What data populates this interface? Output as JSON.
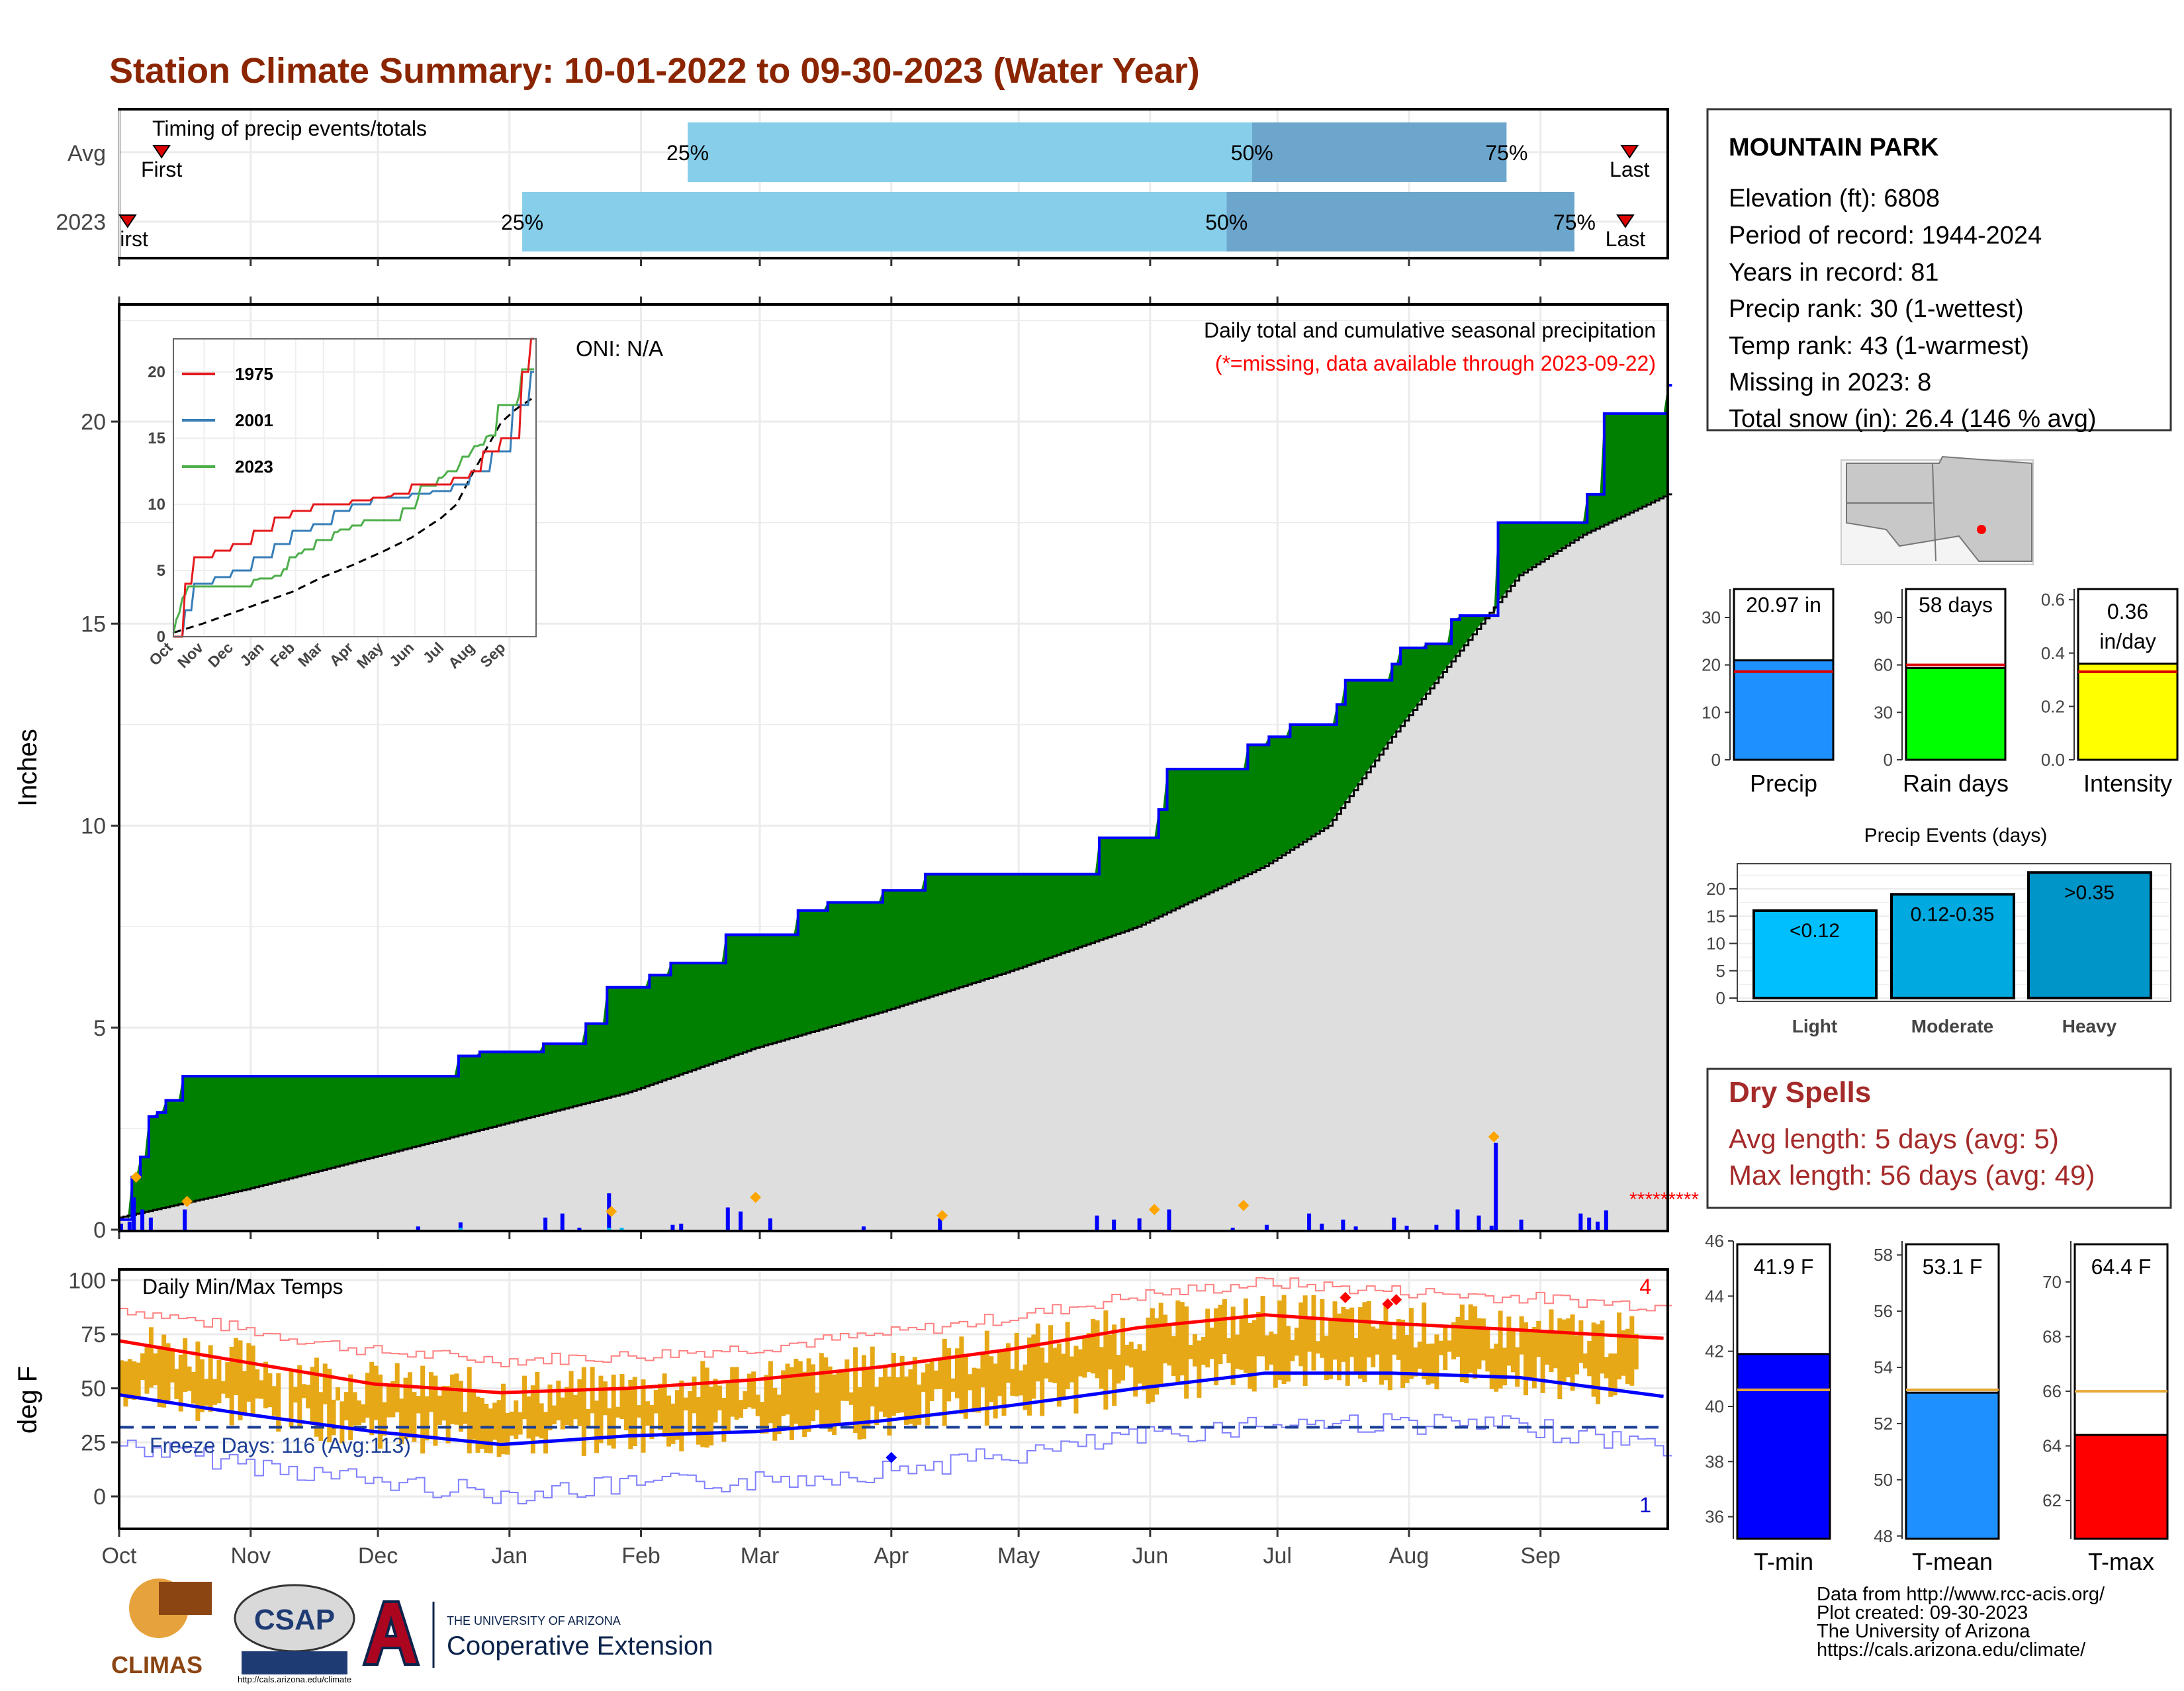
{
  "title": "Station Climate Summary: 10-01-2022 to 09-30-2023 (Water Year)",
  "months": [
    "Oct",
    "Nov",
    "Dec",
    "Jan",
    "Feb",
    "Mar",
    "Apr",
    "May",
    "Jun",
    "Jul",
    "Aug",
    "Sep"
  ],
  "colors": {
    "title": "#8b2500",
    "green": "#008000",
    "blue_line": "#0000ff",
    "grey_fill": "#dedede",
    "light_blue": "#87ceeb",
    "mid_blue": "#6ca6cd",
    "orange": "#e6a817",
    "red": "#ff0000"
  },
  "timing": {
    "title": "Timing of precip events/totals",
    "rows": [
      {
        "label": "Avg",
        "first_label": "First",
        "first_day": 10,
        "last_label": "Last",
        "last_day": 356,
        "p25_day": 134,
        "p50_day": 267,
        "p75_day": 327,
        "p25": "25%",
        "p50": "50%",
        "p75": "75%"
      },
      {
        "label": "2023",
        "first_label": "First",
        "first_day": 2,
        "last_label": "Last",
        "last_day": 355,
        "p25_day": 95,
        "p50_day": 261,
        "p75_day": 343,
        "p25": "25%",
        "p50": "50%",
        "p75": "75%"
      }
    ]
  },
  "precip": {
    "ylabel": "Inches",
    "yticks": [
      0,
      5,
      10,
      15,
      20
    ],
    "ylim": [
      0,
      22.9
    ],
    "oni": "ONI: N/A",
    "note1": "Daily total and cumulative seasonal precipitation",
    "note2": "(*=missing, data available through 2023-09-22)",
    "inset": {
      "yticks": [
        0,
        5,
        10,
        15,
        20
      ],
      "months": [
        "Oct",
        "Nov",
        "Dec",
        "Jan",
        "Feb",
        "Mar",
        "Apr",
        "May",
        "Jun",
        "Jul",
        "Aug",
        "Sep"
      ],
      "legend": [
        "1975",
        "2001",
        "2023"
      ],
      "legend_colors": [
        "#e41a1c",
        "#377eb8",
        "#4daf4a"
      ]
    }
  },
  "temp": {
    "ylabel": "deg F",
    "title": "Daily Min/Max Temps",
    "yticks": [
      0,
      25,
      50,
      75,
      100
    ],
    "freeze": "Freeze Days: 116 (Avg:113)",
    "count_max": "4",
    "count_min": "1"
  },
  "station": {
    "name": "MOUNTAIN PARK",
    "lines": [
      "Elevation (ft): 6808",
      "Period of record: 1944-2024",
      "Years in record: 81",
      "Precip rank: 30 (1-wettest)",
      "Temp rank: 43 (1-warmest)",
      "Missing in 2023: 8",
      "Total snow (in): 26.4 (146 % avg)"
    ]
  },
  "bars_precip": [
    {
      "label": "Precip",
      "value_text": "20.97 in",
      "value": 20.97,
      "avg": 18.6,
      "ylim": [
        0,
        36
      ],
      "ticks": [
        0,
        10,
        20,
        30
      ],
      "color": "#1e90ff"
    },
    {
      "label": "Rain days",
      "value_text": "58 days",
      "value": 58,
      "avg": 60,
      "ylim": [
        0,
        108
      ],
      "ticks": [
        0,
        30,
        60,
        90
      ],
      "color": "#00ff00"
    },
    {
      "label": "Intensity",
      "value_text": "0.36 in/day",
      "value": 0.36,
      "avg": 0.33,
      "ylim": [
        0,
        0.64
      ],
      "ticks": [
        0.0,
        0.2,
        0.4,
        0.6
      ],
      "color": "#ffff00"
    }
  ],
  "events": {
    "title": "Precip Events (days)",
    "ticks": [
      0,
      5,
      10,
      15,
      20
    ],
    "ylim": [
      0,
      24
    ],
    "items": [
      {
        "label": "Light",
        "text": "<0.12",
        "value": 16,
        "color": "#00bfff"
      },
      {
        "label": "Moderate",
        "text": "0.12-0.35",
        "value": 19,
        "color": "#00a9e0"
      },
      {
        "label": "Heavy",
        "text": ">0.35",
        "value": 23,
        "color": "#0095c8"
      }
    ]
  },
  "dry": {
    "title": "Dry Spells",
    "avg": "Avg length: 5 days (avg: 5)",
    "max": "Max length: 56 days (avg: 49)"
  },
  "bars_temp": [
    {
      "label": "T-min",
      "value_text": "41.9 F",
      "value": 41.9,
      "avg": 40.6,
      "ylim": [
        35.2,
        46
      ],
      "ticks": [
        36,
        38,
        40,
        42,
        44,
        46
      ],
      "color": "#0000ff"
    },
    {
      "label": "T-mean",
      "value_text": "53.1 F",
      "value": 53.1,
      "avg": 53.2,
      "ylim": [
        47.9,
        58.5
      ],
      "ticks": [
        48,
        50,
        52,
        54,
        56,
        58
      ],
      "color": "#1e90ff"
    },
    {
      "label": "T-max",
      "value_text": "64.4 F",
      "value": 64.4,
      "avg": 66.0,
      "ylim": [
        60.6,
        71.5
      ],
      "ticks": [
        62,
        64,
        66,
        68,
        70
      ],
      "color": "#ff0000"
    }
  ],
  "footer": {
    "lines": [
      "Data from http://www.rcc-acis.org/",
      "Plot created: 09-30-2023",
      "The University of Arizona",
      "https://cals.arizona.edu/climate/"
    ],
    "climas": "CLIMAS",
    "csap": "CSAP",
    "csap_url": "http://cals.arizona.edu/climate",
    "ua_small": "THE UNIVERSITY OF ARIZONA",
    "ua_big": "Cooperative Extension"
  },
  "chart_data": [
    {
      "type": "area",
      "title": "Daily total and cumulative seasonal precipitation",
      "ylabel": "Inches",
      "ylim": [
        0,
        22.9
      ],
      "series": [
        {
          "name": "Cumulative 2023",
          "x_day": [
            0,
            3,
            5,
            7,
            9,
            11,
            15,
            20,
            25,
            70,
            80,
            85,
            100,
            110,
            115,
            125,
            130,
            143,
            160,
            167,
            180,
            190,
            215,
            225,
            231,
            245,
            247,
            255,
            263,
            266,
            271,
            276,
            287,
            289,
            300,
            302,
            308,
            314,
            316,
            325,
            346,
            350,
            365
          ],
          "values": [
            0.25,
            1.3,
            1.8,
            2.8,
            2.9,
            3.2,
            3.8,
            3.8,
            3.8,
            3.8,
            4.3,
            4.4,
            4.6,
            5.1,
            6.0,
            6.3,
            6.6,
            7.3,
            7.9,
            8.1,
            8.4,
            8.8,
            8.8,
            8.8,
            9.7,
            10.4,
            11.4,
            11.4,
            11.4,
            12.0,
            12.2,
            12.5,
            13.0,
            13.6,
            14.0,
            14.4,
            14.5,
            15.1,
            15.2,
            17.5,
            18.2,
            20.2,
            20.9
          ]
        },
        {
          "name": "Average cumulative",
          "x_day": [
            0,
            30,
            60,
            90,
            120,
            150,
            180,
            210,
            240,
            270,
            285,
            300,
            315,
            330,
            345,
            365
          ],
          "values": [
            0.3,
            1.0,
            1.8,
            2.6,
            3.4,
            4.5,
            5.4,
            6.4,
            7.5,
            9.0,
            10.0,
            12.2,
            14.2,
            16.2,
            17.2,
            18.2
          ]
        }
      ]
    },
    {
      "type": "line",
      "title": "Daily Min/Max Temps",
      "ylabel": "deg F",
      "ylim": [
        -15,
        105
      ],
      "series": [
        {
          "name": "Avg max",
          "x_day": [
            0,
            30,
            60,
            90,
            120,
            150,
            180,
            210,
            240,
            270,
            300,
            330,
            365
          ],
          "values": [
            72,
            62,
            52,
            48,
            50,
            54,
            60,
            68,
            78,
            84,
            80,
            77,
            73
          ]
        },
        {
          "name": "Avg min",
          "x_day": [
            0,
            30,
            60,
            90,
            120,
            150,
            180,
            210,
            240,
            270,
            300,
            330,
            365
          ],
          "values": [
            47,
            38,
            30,
            24,
            28,
            30,
            35,
            42,
            50,
            57,
            57,
            55,
            46
          ]
        },
        {
          "name": "Freeze line",
          "x_day": [
            0,
            365
          ],
          "values": [
            32,
            32
          ]
        }
      ]
    },
    {
      "type": "bar",
      "title": "Precip Events (days)",
      "categories": [
        "Light",
        "Moderate",
        "Heavy"
      ],
      "values": [
        16,
        19,
        23
      ],
      "ylim": [
        0,
        24
      ]
    },
    {
      "type": "bar",
      "categories": [
        "Precip",
        "Rain days",
        "Intensity"
      ],
      "series": [
        {
          "values": [
            20.97,
            58,
            0.36
          ]
        }
      ]
    },
    {
      "type": "bar",
      "categories": [
        "T-min",
        "T-mean",
        "T-max"
      ],
      "series": [
        {
          "values": [
            41.9,
            53.1,
            64.4
          ]
        }
      ]
    }
  ]
}
